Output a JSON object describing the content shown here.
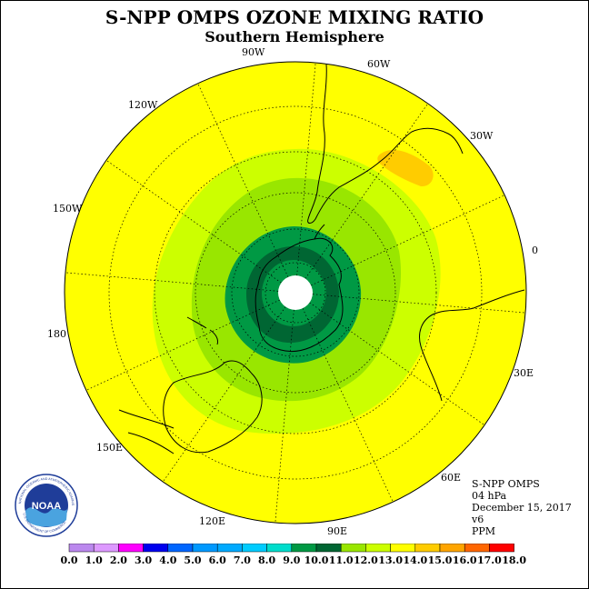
{
  "header": {
    "title": "S-NPP OMPS OZONE MIXING RATIO",
    "subtitle": "Southern Hemisphere"
  },
  "map": {
    "projection": "south-polar-stereographic",
    "fill_colors": {
      "background": "#ffff00",
      "band_11_12": "#ccff00",
      "band_10_11": "#99e600",
      "band_9_10": "#009944",
      "band_8_9": "#006633",
      "band_13_14": "#ffcc00",
      "pole_cap": "#ffffff"
    },
    "longitude_labels": [
      "90W",
      "60W",
      "30W",
      "0",
      "30E",
      "60E",
      "90E",
      "120E",
      "150E",
      "180",
      "150W",
      "120W"
    ]
  },
  "info": {
    "instrument": "S-NPP OMPS",
    "level": "04 hPa",
    "date": "December 15, 2017",
    "version": "v6",
    "units": "PPM"
  },
  "logo": {
    "text": "NOAA",
    "ring_text": "NATIONAL OCEANIC AND ATMOSPHERIC ADMINISTRATION",
    "bottom_text": "U.S. DEPARTMENT OF COMMERCE"
  },
  "colorbar": {
    "labels": [
      "0.0",
      "1.0",
      "2.0",
      "3.0",
      "4.0",
      "5.0",
      "6.0",
      "7.0",
      "8.0",
      "9.0",
      "10.0",
      "11.0",
      "12.0",
      "13.0",
      "14.0",
      "15.0",
      "16.0",
      "17.0",
      "18.0"
    ],
    "colors": [
      "#bb88ee",
      "#dd99ff",
      "#ff00ff",
      "#0000ee",
      "#0066ff",
      "#0099ff",
      "#00aaff",
      "#00ccff",
      "#00ddcc",
      "#009944",
      "#006633",
      "#99e600",
      "#ccff00",
      "#ffff00",
      "#ffcc00",
      "#ffa500",
      "#ff6600",
      "#ff0000",
      "#996633"
    ]
  }
}
